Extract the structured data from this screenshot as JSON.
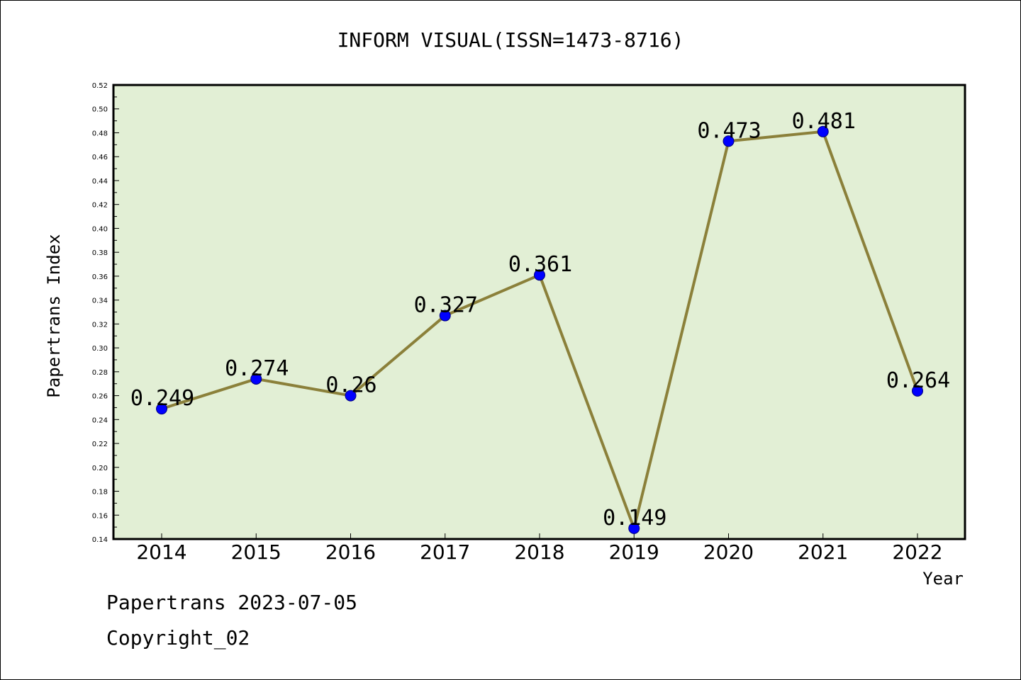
{
  "chart_data": {
    "type": "line",
    "title": "INFORM VISUAL(ISSN=1473-8716)",
    "xlabel": "Year",
    "ylabel": "Papertrans Index",
    "categories": [
      "2014",
      "2015",
      "2016",
      "2017",
      "2018",
      "2019",
      "2020",
      "2021",
      "2022"
    ],
    "series": [
      {
        "values": [
          0.249,
          0.274,
          0.26,
          0.327,
          0.361,
          0.149,
          0.473,
          0.481,
          0.264
        ],
        "labels": [
          "0.249",
          "0.274",
          "0.26",
          "0.327",
          "0.361",
          "0.149",
          "0.473",
          "0.481",
          "0.264"
        ]
      }
    ],
    "ylim": [
      0.14,
      0.52
    ],
    "yticks": [
      "0.14",
      "0.16",
      "0.18",
      "0.20",
      "0.22",
      "0.24",
      "0.26",
      "0.28",
      "0.30",
      "0.32",
      "0.34",
      "0.36",
      "0.38",
      "0.40",
      "0.42",
      "0.44",
      "0.46",
      "0.48",
      "0.50",
      "0.52"
    ],
    "grid": false,
    "legend": "none",
    "colors": {
      "plot_background": "#e2efd5",
      "line": "#8b803a",
      "marker": "#0000ff",
      "axis": "#000000"
    }
  },
  "footer": {
    "line1": "Papertrans 2023-07-05",
    "line2": "Copyright_02"
  }
}
